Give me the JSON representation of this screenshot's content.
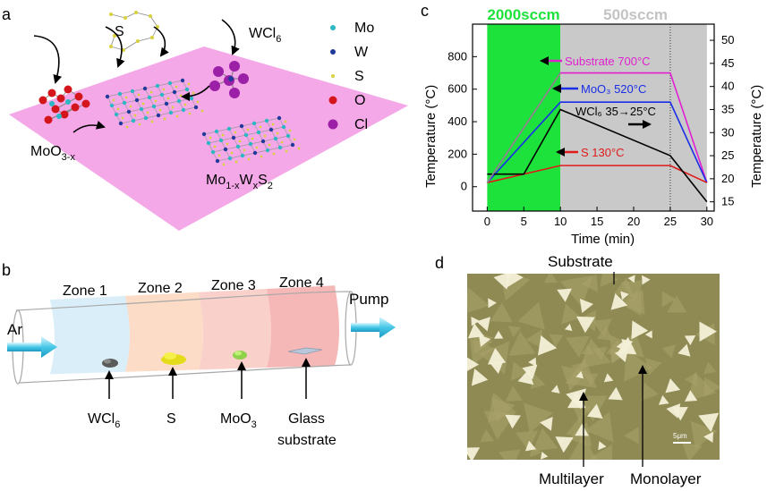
{
  "panels": {
    "a": "a",
    "b": "b",
    "c": "c",
    "d": "d"
  },
  "panel_a": {
    "legend": [
      {
        "label": "Mo",
        "color": "#2bb7c4"
      },
      {
        "label": "W",
        "color": "#1f3a9a"
      },
      {
        "label": "S",
        "color": "#d8d23a"
      },
      {
        "label": "O",
        "color": "#d4161c"
      },
      {
        "label": "Cl",
        "color": "#9b1fa7"
      }
    ],
    "labels": {
      "s": "S",
      "wcl_main": "WCl",
      "wcl_sub": "6",
      "moo_main": "MoO",
      "moo_sub": "3-x",
      "alloy": [
        "Mo",
        "1-x",
        "W",
        "x",
        "S",
        "2"
      ]
    },
    "colors": {
      "plane": "#f4a8e8"
    }
  },
  "panel_b": {
    "zones": [
      "Zone 1",
      "Zone 2",
      "Zone 3",
      "Zone 4"
    ],
    "gas_in": "Ar",
    "gas_out": "Pump",
    "materials": [
      {
        "main": "WCl",
        "sub": "6"
      },
      {
        "main": "S",
        "sub": ""
      },
      {
        "main": "MoO",
        "sub": "3"
      },
      {
        "main": "Glass",
        "line2": "substrate"
      }
    ],
    "zone_colors": [
      "#cfeaf6",
      "#fbd3b8",
      "#f8c4bd",
      "#f4a5a5"
    ]
  },
  "chart_data": {
    "type": "line",
    "xlabel": "Time (min)",
    "ylabel_left": "Temperature (°C)",
    "ylabel_right": "Temperature (°C)",
    "xlim": [
      -2,
      31
    ],
    "ylim_left": [
      -150,
      1000
    ],
    "ylim_right": [
      13,
      53.5
    ],
    "xticks": [
      0,
      5,
      10,
      15,
      20,
      25,
      30
    ],
    "yticks_left": [
      0,
      200,
      400,
      600,
      800
    ],
    "yticks_right": [
      15,
      20,
      25,
      30,
      35,
      40,
      45,
      50
    ],
    "regions": [
      {
        "label": "2000sccm",
        "x0": 0,
        "x1": 10,
        "color": "#1ee23c"
      },
      {
        "label": "500sccm",
        "x0": 10,
        "x1": 30,
        "color": "#c9c9c9"
      }
    ],
    "vline_x": 25,
    "series": [
      {
        "name": "Substrate 700°C",
        "color": "#e020d0",
        "axis": "left",
        "x": [
          0,
          10,
          25,
          30
        ],
        "y": [
          25,
          700,
          700,
          25
        ]
      },
      {
        "name": "MoO₃ 520°C",
        "color": "#1a2ee8",
        "axis": "left",
        "x": [
          0,
          10,
          25,
          30
        ],
        "y": [
          25,
          520,
          520,
          25
        ]
      },
      {
        "name": "S 130°C",
        "color": "#e01a1a",
        "axis": "left",
        "x": [
          0,
          10,
          25,
          30
        ],
        "y": [
          25,
          130,
          130,
          25
        ]
      },
      {
        "name": "WCl₆ 35→25°C",
        "color": "#000000",
        "axis": "right",
        "x": [
          0,
          5,
          10,
          25,
          30
        ],
        "y": [
          21,
          21,
          35,
          25,
          15
        ]
      },
      {
        "name": "",
        "color": "#8a8a8a",
        "axis": "left",
        "x": [
          0,
          10
        ],
        "y": [
          25,
          700
        ]
      }
    ],
    "annotations": [
      {
        "text": "Substrate 700°C",
        "color": "#e020d0"
      },
      {
        "text": "MoO₃ 520°C",
        "color": "#1a2ee8"
      },
      {
        "text": "WCl₆ 35→25°C",
        "color": "#000000"
      },
      {
        "text": "S 130°C",
        "color": "#e01a1a"
      }
    ]
  },
  "panel_d": {
    "top_label": "Substrate",
    "bottom_labels": [
      "Multilayer",
      "Monolayer"
    ],
    "scalebar": "5μm",
    "colors": {
      "bg": "#8f8a54",
      "flake": "#f3f0d8"
    }
  }
}
